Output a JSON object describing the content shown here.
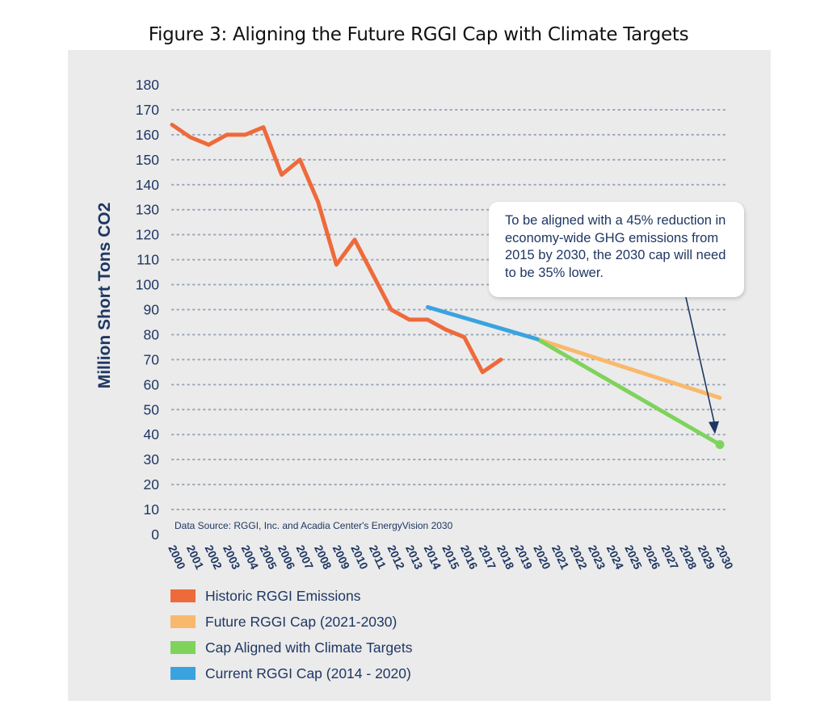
{
  "title": "Figure 3: Aligning the Future RGGI Cap with Climate Targets",
  "source_note": "Data Source: RGGI, Inc. and Acadia Center's EnergyVision 2030",
  "annotation": {
    "text": "To be aligned with a 45% reduction in economy-wide GHG emissions from 2015 by 2030, the 2030 cap will need to be 35% lower."
  },
  "chart_data": {
    "type": "line",
    "title": "Figure 3: Aligning the Future RGGI Cap with Climate Targets",
    "xlabel": "",
    "ylabel": "Million Short Tons CO2",
    "ylim": [
      0,
      180
    ],
    "xlim": [
      2000,
      2030
    ],
    "y_ticks": [
      0,
      10,
      20,
      30,
      40,
      50,
      60,
      70,
      80,
      90,
      100,
      110,
      120,
      130,
      140,
      150,
      160,
      170,
      180
    ],
    "x_ticks": [
      "2000",
      "2001",
      "2002",
      "2003",
      "2004",
      "2005",
      "2006",
      "2007",
      "2008",
      "2009",
      "2010",
      "2011",
      "2012",
      "2013",
      "2014",
      "2015",
      "2016",
      "2017",
      "2018",
      "2019",
      "2020",
      "2021",
      "2022",
      "2023",
      "2024",
      "2025",
      "2026",
      "2027",
      "2028",
      "2029",
      "2030"
    ],
    "grid": "horizontal dotted",
    "legend_position": "bottom",
    "series": [
      {
        "name": "Historic RGGI Emissions",
        "color": "#ee6a3b",
        "x": [
          2000,
          2001,
          2002,
          2003,
          2004,
          2005,
          2006,
          2007,
          2008,
          2009,
          2010,
          2011,
          2012,
          2013,
          2014,
          2015,
          2016,
          2017,
          2018
        ],
        "values": [
          164,
          159,
          156,
          160,
          160,
          163,
          144,
          150,
          133,
          108,
          118,
          104,
          90,
          86,
          86,
          82,
          79,
          65,
          70
        ]
      },
      {
        "name": "Future RGGI Cap (2021-2030)",
        "color": "#f9b96c",
        "x": [
          2020,
          2030
        ],
        "values": [
          78.2,
          54.7
        ]
      },
      {
        "name": "Cap Aligned with Climate Targets",
        "color": "#7fd35c",
        "x": [
          2020,
          2030
        ],
        "values": [
          78.2,
          36
        ]
      },
      {
        "name": "Current RGGI Cap (2014 - 2020)",
        "color": "#3aa3df",
        "x": [
          2014,
          2020
        ],
        "values": [
          91,
          78.2
        ]
      }
    ]
  }
}
